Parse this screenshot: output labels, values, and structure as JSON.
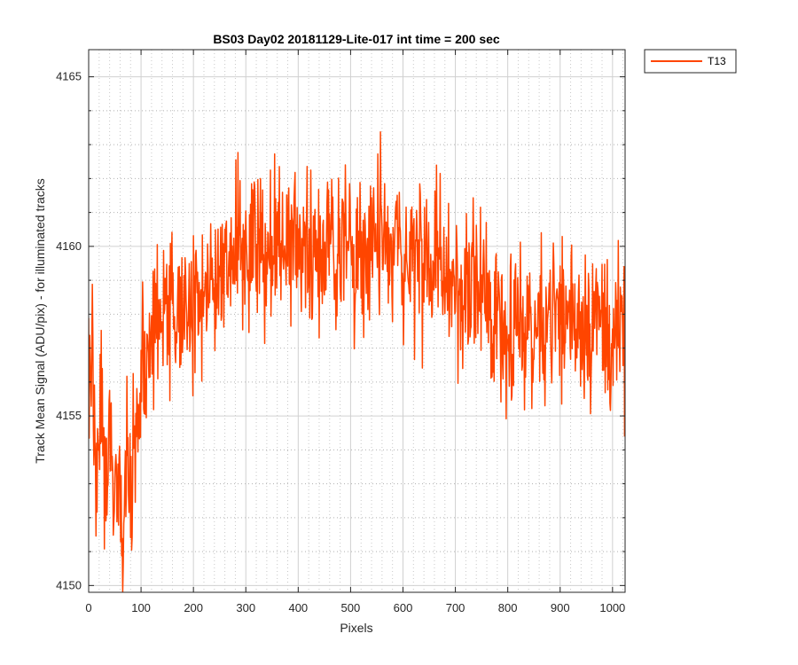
{
  "chart_data": {
    "type": "line",
    "title": "BS03 Day02 20181129-Lite-017 int time = 200 sec",
    "xlabel": "Pixels",
    "ylabel": "Track Mean Signal (ADU/pix) - for illuminated tracks",
    "xlim": [
      0,
      1024
    ],
    "ylim": [
      4149.8,
      4165.8
    ],
    "xticks": [
      0,
      100,
      200,
      300,
      400,
      500,
      600,
      700,
      800,
      900,
      1000
    ],
    "yticks": [
      4150,
      4155,
      4160,
      4165
    ],
    "grid": "major and minor (dotted)",
    "legend_position": "outside-top-right",
    "series": [
      {
        "name": "T13",
        "color": "#FF4500",
        "x_step": 8,
        "values": [
          4155.8,
          4156.2,
          4153.8,
          4155.1,
          4152.3,
          4154.6,
          4151.4,
          4153.5,
          4150.7,
          4152.9,
          4153.4,
          4154.2,
          4155.4,
          4156.3,
          4156.6,
          4157.2,
          4157.4,
          4157.9,
          4158.4,
          4157.6,
          4158.3,
          4157.9,
          4158.4,
          4158.0,
          4157.9,
          4158.1,
          4157.5,
          4158.4,
          4158.7,
          4159.0,
          4158.8,
          4159.3,
          4159.5,
          4159.2,
          4159.8,
          4160.0,
          4159.7,
          4160.2,
          4159.9,
          4160.3,
          4159.8,
          4160.5,
          4159.9,
          4160.1,
          4160.4,
          4159.7,
          4160.2,
          4160.3,
          4159.6,
          4160.0,
          4159.9,
          4160.4,
          4160.1,
          4160.2,
          4160.1,
          4159.7,
          4159.9,
          4160.3,
          4160.0,
          4159.8,
          4160.2,
          4160.1,
          4160.0,
          4159.9,
          4160.3,
          4160.0,
          4160.2,
          4159.8,
          4160.1,
          4159.9,
          4160.1,
          4159.8,
          4160.0,
          4159.7,
          4159.9,
          4160.0,
          4159.6,
          4159.8,
          4159.5,
          4159.7,
          4159.6,
          4159.4,
          4159.5,
          4159.3,
          4159.2,
          4159.1,
          4159.0,
          4158.9,
          4158.8,
          4158.7,
          4158.8,
          4158.6,
          4158.5,
          4158.4,
          4158.6,
          4158.3,
          4158.2,
          4158.0,
          4158.1,
          4157.9,
          4158.0,
          4157.6,
          4157.8,
          4157.5,
          4157.8,
          4157.6,
          4157.7,
          4157.5,
          4157.9,
          4158.0,
          4158.2,
          4158.1,
          4157.9,
          4158.0,
          4157.8,
          4158.2,
          4158.1,
          4157.9,
          4158.0,
          4157.7,
          4157.9,
          4158.0,
          4157.8,
          4157.6,
          4157.5,
          4157.4,
          4157.3,
          4157.2,
          4157.0
        ]
      }
    ]
  }
}
